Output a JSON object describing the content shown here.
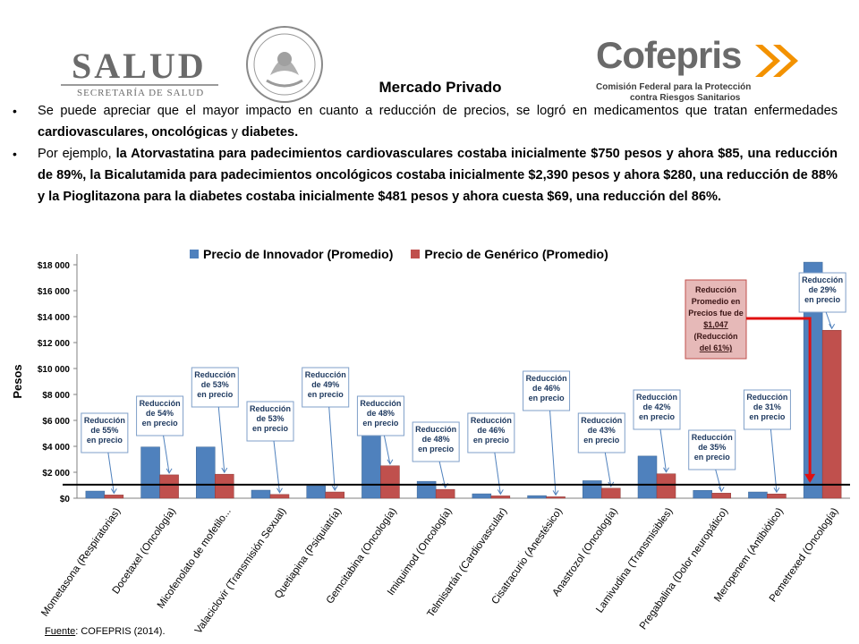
{
  "header": {
    "salud_word": "SALUD",
    "salud_sub": "SECRETARÍA DE SALUD",
    "cofepris_word": "Cofepris",
    "cofepris_sub_1": "Comisión Federal para la Protección",
    "cofepris_sub_2": "contra Riesgos Sanitarios"
  },
  "title": "Mercado Privado",
  "bullets": {
    "b1_pre": "Se puede apreciar que el mayor impacto en cuanto a reducción de precios, se logró en medicamentos que tratan enfermedades ",
    "b1_bold": "cardiovasculares, oncológicas",
    "b1_mid": " y ",
    "b1_bold2": "diabetes",
    "b1_end": ".",
    "b2_pre": "Por ejemplo, ",
    "b2_bold": "la Atorvastatina para padecimientos cardiovasculares costaba inicialmente $750 pesos y ahora $85, una reducción de 89%, la Bicalutamida para padecimientos oncológicos costaba inicialmente $2,390 pesos y ahora $280, una reducción de 88% y la Pioglitazona para la diabetes costaba inicialmente $481 pesos y ahora cuesta $69, una reducción del 86%."
  },
  "chart_data": {
    "type": "bar",
    "ylabel": "Pesos",
    "ylim": [
      0,
      18000
    ],
    "yticks": [
      "$0",
      "$2 000",
      "$4 000",
      "$6 000",
      "$8 000",
      "$10 000",
      "$12 000",
      "$14 000",
      "$16 000",
      "$18 000"
    ],
    "categories": [
      "Mometasona (Respiratorias)",
      "Docetaxel (Oncología)",
      "Micofenolato de mofetilo...",
      "Valaciclovir (Transmisión Sexual)",
      "Quetiapina (Psiquiatría)",
      "Gemcitabina (Oncología)",
      "Imiquimod (Oncología)",
      "Telmisartán (Cardiovascular)",
      "Cisatracurio (Anestésico)",
      "Anastrozol (Oncología)",
      "Lamivudina (Transmisibles)",
      "Pregabalina (Dolor neuropático)",
      "Meropenem (Antibiótico)",
      "Pemetrexed (Oncología)"
    ],
    "series": [
      {
        "name": "Precio de Innovador (Promedio)",
        "color": "#4f81bd",
        "values": [
          550,
          3950,
          3950,
          620,
          950,
          4800,
          1300,
          340,
          200,
          1350,
          3250,
          600,
          480,
          18200
        ]
      },
      {
        "name": "Precio de Genérico (Promedio)",
        "color": "#c0504d",
        "values": [
          250,
          1800,
          1850,
          290,
          480,
          2500,
          680,
          180,
          110,
          770,
          1880,
          390,
          330,
          12950
        ]
      }
    ],
    "callouts": [
      [
        "Reducción",
        "de 55%",
        "en precio"
      ],
      [
        "Reducción",
        "de 54%",
        "en precio"
      ],
      [
        "Reducción",
        "de 53%",
        "en precio"
      ],
      [
        "Reducción",
        "de 53%",
        "en precio"
      ],
      [
        "Reducción",
        "de 49%",
        "en precio"
      ],
      [
        "Reducción",
        "de 48%",
        "en precio"
      ],
      [
        "Reducción",
        "de 48%",
        "en precio"
      ],
      [
        "Reducción",
        "de 46%",
        "en precio"
      ],
      [
        "Reducción",
        "de 46%",
        "en precio"
      ],
      [
        "Reducción",
        "de 43%",
        "en precio"
      ],
      [
        "Reducción",
        "de 42%",
        "en precio"
      ],
      [
        "Reducción",
        "de 35%",
        "en precio"
      ],
      [
        "Reducción",
        "de 31%",
        "en precio"
      ],
      [
        "Reducción",
        "de 29%",
        "en precio"
      ]
    ],
    "average_box": [
      "Reducción",
      "Promedio en",
      "Precios fue de",
      "$1,047",
      "(Reducción",
      "del 61%)"
    ],
    "average_line_value": 1047,
    "grid": false,
    "legend": "top"
  },
  "source": {
    "label": "Fuente",
    "text": ": COFEPRIS (2014)."
  }
}
